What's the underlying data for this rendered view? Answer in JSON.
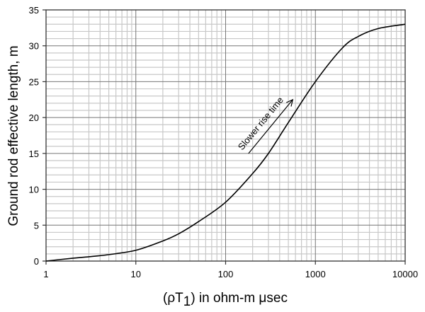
{
  "chart_data": {
    "type": "line",
    "title": "",
    "xlabel": "(ρT1) in ohm-m μsec",
    "xlabel_parts": {
      "prefix": "(ρT",
      "subscript": "1",
      "suffix": ") in ohm-m μsec"
    },
    "ylabel": "Ground rod effective length, m",
    "xscale": "log",
    "xlim": [
      1,
      10000
    ],
    "ylim": [
      0,
      35
    ],
    "x_ticks": [
      "1",
      "10",
      "100",
      "1000",
      "10000"
    ],
    "y_ticks": [
      "0",
      "5",
      "10",
      "15",
      "20",
      "25",
      "30",
      "35"
    ],
    "grid": true,
    "legend": null,
    "series": [
      {
        "name": "Effective length",
        "x": [
          1,
          2,
          3,
          5,
          10,
          20,
          30,
          50,
          100,
          200,
          300,
          500,
          1000,
          2000,
          3000,
          5000,
          10000
        ],
        "y": [
          0,
          0.4,
          0.6,
          0.9,
          1.5,
          2.8,
          3.8,
          5.5,
          8.2,
          12.2,
          15.0,
          19.3,
          25.0,
          29.7,
          31.3,
          32.4,
          33.0
        ]
      }
    ],
    "annotations": [
      {
        "text": "Slower rise time",
        "type": "arrow",
        "from": [
          180,
          15
        ],
        "to": [
          560,
          22.5
        ]
      }
    ]
  }
}
